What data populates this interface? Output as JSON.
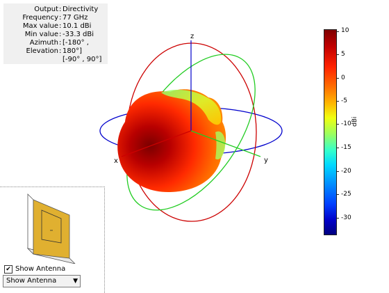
{
  "info": {
    "rows": [
      {
        "label": "Output",
        "value": "Directivity"
      },
      {
        "label": "Frequency",
        "value": "77 GHz"
      },
      {
        "label": "Max value",
        "value": "10.1 dBi"
      },
      {
        "label": "Min value",
        "value": "-33.3 dBi"
      },
      {
        "label": "Azimuth",
        "value": "[-180° ,"
      },
      {
        "label": "Elevation",
        "value": "180°]"
      },
      {
        "label": "",
        "value": "[-90° , 90°]"
      }
    ]
  },
  "axes": {
    "x": "x",
    "y": "y",
    "z": "z"
  },
  "colorbar": {
    "ticks": [
      "10",
      "5",
      "0",
      "-5",
      "-10",
      "-15",
      "-20",
      "-25",
      "-30"
    ],
    "unit": "dBi",
    "colors": {
      "max": "#7f0000",
      "mid": "#f0ff10",
      "min": "#00007f"
    }
  },
  "pattern_colors": {
    "azimuth_ring": "#0000cc",
    "elevation_ring": "#cc0000",
    "xz_ring": "#22cc22",
    "lobe": "#ff4000"
  },
  "antenna_panel": {
    "show_label": "Show Antenna",
    "checkbox_checked": true,
    "dropdown_value": "Show Antenna",
    "patch_color": "#e0b030"
  }
}
